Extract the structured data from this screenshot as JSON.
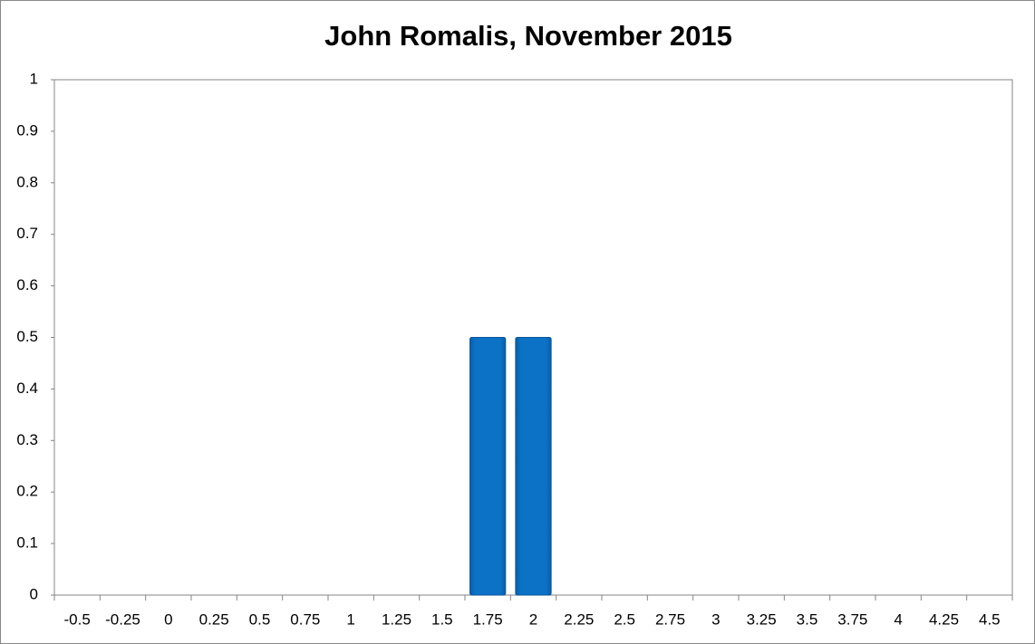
{
  "chart_data": {
    "type": "bar",
    "title": "John Romalis, November 2015",
    "categories": [
      "-0.5",
      "-0.25",
      "0",
      "0.25",
      "0.5",
      "0.75",
      "1",
      "1.25",
      "1.5",
      "1.75",
      "2",
      "2.25",
      "2.5",
      "2.75",
      "3",
      "3.25",
      "3.5",
      "3.75",
      "4",
      "4.25",
      "4.5"
    ],
    "values": [
      0,
      0,
      0,
      0,
      0,
      0,
      0,
      0,
      0,
      0.5,
      0.5,
      0,
      0,
      0,
      0,
      0,
      0,
      0,
      0,
      0,
      0
    ],
    "color": "#0b72c6",
    "ylim": [
      0,
      1
    ],
    "yticks": [
      0,
      0.1,
      0.2,
      0.3,
      0.4,
      0.5,
      0.6,
      0.7,
      0.8,
      0.9,
      1
    ],
    "grid": false
  }
}
